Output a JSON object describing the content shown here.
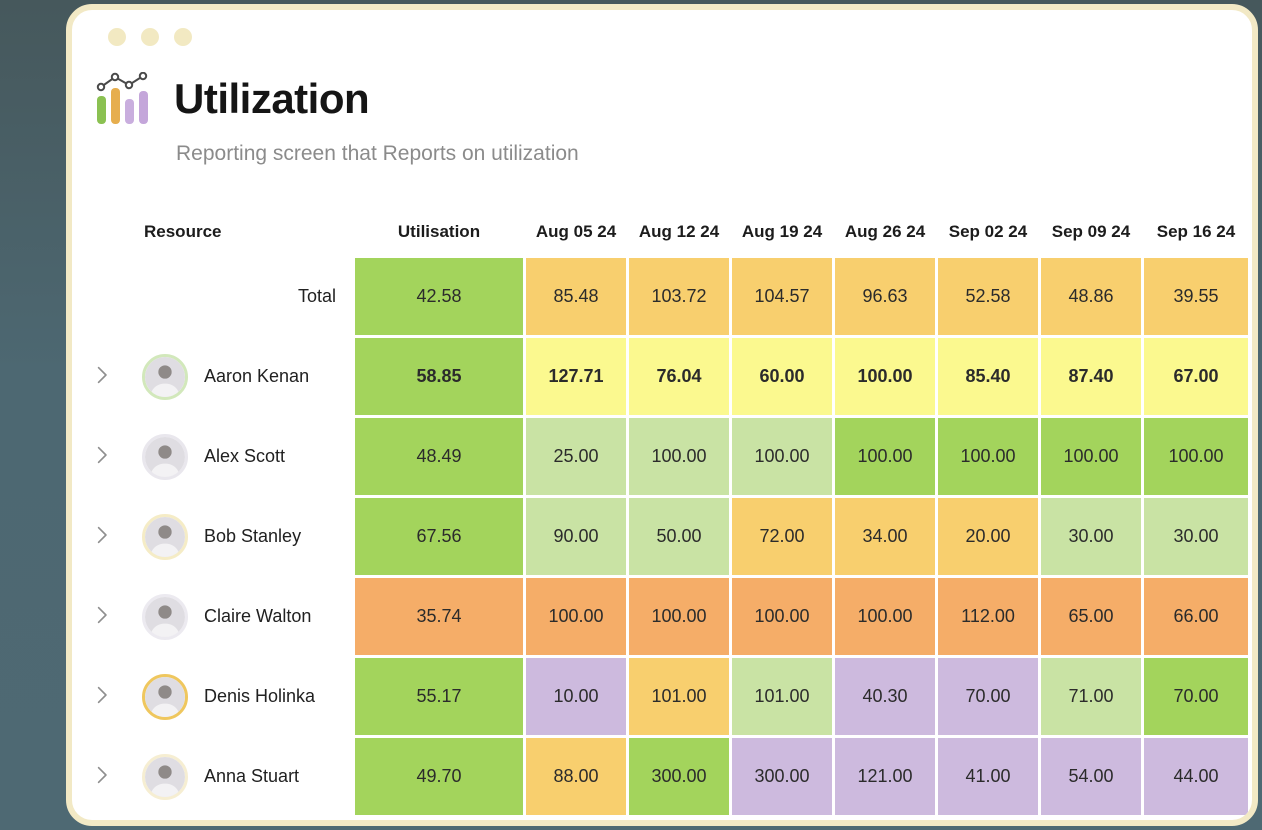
{
  "theme": {
    "background_top": "#46585c",
    "background_bottom": "#4e6973",
    "frame_border": "#f2e9c5",
    "card_background": "#ffffff",
    "window_dot": "#f2e9c2",
    "subtitle_text": "#8b8b8b",
    "cell_text": "#2b2b2b"
  },
  "palette": {
    "green": "#a3d45c",
    "pale_green": "#c9e3a4",
    "amber": "#f8cf6e",
    "lemon": "#fbf98f",
    "orange": "#f5ad68",
    "purple": "#cdbade"
  },
  "header": {
    "title": "Utilization",
    "subtitle": "Reporting screen that Reports on utilization"
  },
  "table": {
    "resource_header": "Resource",
    "columns": [
      "Utilisation",
      "Aug 05 24",
      "Aug 12 24",
      "Aug 19 24",
      "Aug 26 24",
      "Sep 02 24",
      "Sep 09 24",
      "Sep 16 24"
    ],
    "total_row": {
      "label": "Total",
      "cells": [
        {
          "v": "42.58",
          "c": "green"
        },
        {
          "v": "85.48",
          "c": "amber"
        },
        {
          "v": "103.72",
          "c": "amber"
        },
        {
          "v": "104.57",
          "c": "amber"
        },
        {
          "v": "96.63",
          "c": "amber"
        },
        {
          "v": "52.58",
          "c": "amber"
        },
        {
          "v": "48.86",
          "c": "amber"
        },
        {
          "v": "39.55",
          "c": "amber"
        }
      ]
    },
    "rows": [
      {
        "name": "Aaron Kenan",
        "bold": true,
        "ring": "#d2e8bb",
        "cells": [
          {
            "v": "58.85",
            "c": "green"
          },
          {
            "v": "127.71",
            "c": "lemon"
          },
          {
            "v": "76.04",
            "c": "lemon"
          },
          {
            "v": "60.00",
            "c": "lemon"
          },
          {
            "v": "100.00",
            "c": "lemon"
          },
          {
            "v": "85.40",
            "c": "lemon"
          },
          {
            "v": "87.40",
            "c": "lemon"
          },
          {
            "v": "67.00",
            "c": "lemon"
          }
        ]
      },
      {
        "name": "Alex Scott",
        "bold": false,
        "ring": "#e9e7ed",
        "cells": [
          {
            "v": "48.49",
            "c": "green"
          },
          {
            "v": "25.00",
            "c": "pale_green"
          },
          {
            "v": "100.00",
            "c": "pale_green"
          },
          {
            "v": "100.00",
            "c": "pale_green"
          },
          {
            "v": "100.00",
            "c": "green"
          },
          {
            "v": "100.00",
            "c": "green"
          },
          {
            "v": "100.00",
            "c": "green"
          },
          {
            "v": "100.00",
            "c": "green"
          }
        ]
      },
      {
        "name": "Bob Stanley",
        "bold": false,
        "ring": "#f5ecc6",
        "cells": [
          {
            "v": "67.56",
            "c": "green"
          },
          {
            "v": "90.00",
            "c": "pale_green"
          },
          {
            "v": "50.00",
            "c": "pale_green"
          },
          {
            "v": "72.00",
            "c": "amber"
          },
          {
            "v": "34.00",
            "c": "amber"
          },
          {
            "v": "20.00",
            "c": "amber"
          },
          {
            "v": "30.00",
            "c": "pale_green"
          },
          {
            "v": "30.00",
            "c": "pale_green"
          }
        ]
      },
      {
        "name": "Claire Walton",
        "bold": false,
        "ring": "#eceaf0",
        "cells": [
          {
            "v": "35.74",
            "c": "orange"
          },
          {
            "v": "100.00",
            "c": "orange"
          },
          {
            "v": "100.00",
            "c": "orange"
          },
          {
            "v": "100.00",
            "c": "orange"
          },
          {
            "v": "100.00",
            "c": "orange"
          },
          {
            "v": "112.00",
            "c": "orange"
          },
          {
            "v": "65.00",
            "c": "orange"
          },
          {
            "v": "66.00",
            "c": "orange"
          }
        ]
      },
      {
        "name": "Denis Holinka",
        "bold": false,
        "ring": "#efc75e",
        "cells": [
          {
            "v": "55.17",
            "c": "green"
          },
          {
            "v": "10.00",
            "c": "purple"
          },
          {
            "v": "101.00",
            "c": "amber"
          },
          {
            "v": "101.00",
            "c": "pale_green"
          },
          {
            "v": "40.30",
            "c": "purple"
          },
          {
            "v": "70.00",
            "c": "purple"
          },
          {
            "v": "71.00",
            "c": "pale_green"
          },
          {
            "v": "70.00",
            "c": "green"
          }
        ]
      },
      {
        "name": "Anna Stuart",
        "bold": false,
        "ring": "#f6eed2",
        "cells": [
          {
            "v": "49.70",
            "c": "green"
          },
          {
            "v": "88.00",
            "c": "amber"
          },
          {
            "v": "300.00",
            "c": "green"
          },
          {
            "v": "300.00",
            "c": "purple"
          },
          {
            "v": "121.00",
            "c": "purple"
          },
          {
            "v": "41.00",
            "c": "purple"
          },
          {
            "v": "54.00",
            "c": "purple"
          },
          {
            "v": "44.00",
            "c": "purple"
          }
        ]
      }
    ]
  }
}
